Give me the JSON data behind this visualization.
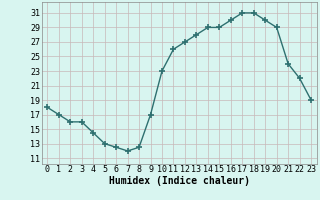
{
  "x": [
    0,
    1,
    2,
    3,
    4,
    5,
    6,
    7,
    8,
    9,
    10,
    11,
    12,
    13,
    14,
    15,
    16,
    17,
    18,
    19,
    20,
    21,
    22,
    23
  ],
  "y": [
    18,
    17,
    16,
    16,
    14.5,
    13,
    12.5,
    12,
    12.5,
    17,
    23,
    26,
    27,
    28,
    29,
    29,
    30,
    31,
    31,
    30,
    29,
    24,
    22,
    19
  ],
  "line_color": "#2e7070",
  "marker": "+",
  "marker_size": 4.0,
  "marker_lw": 1.2,
  "bg_color": "#d8f5f0",
  "grid_color": "#c8b8b8",
  "xlabel": "Humidex (Indice chaleur)",
  "xlabel_fontsize": 7,
  "ylabel_ticks": [
    11,
    13,
    15,
    17,
    19,
    21,
    23,
    25,
    27,
    29,
    31
  ],
  "xticks": [
    0,
    1,
    2,
    3,
    4,
    5,
    6,
    7,
    8,
    9,
    10,
    11,
    12,
    13,
    14,
    15,
    16,
    17,
    18,
    19,
    20,
    21,
    22,
    23
  ],
  "ylim": [
    10.2,
    32.5
  ],
  "xlim": [
    -0.5,
    23.5
  ],
  "tick_fontsize": 6,
  "line_width": 1.0,
  "spine_color": "#888888"
}
